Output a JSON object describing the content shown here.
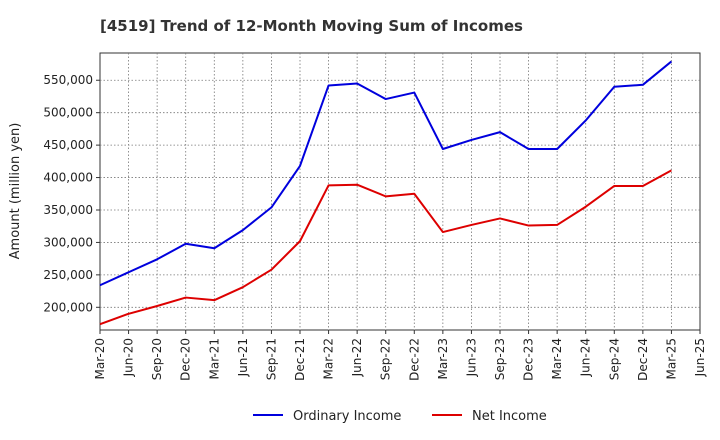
{
  "chart_data": {
    "type": "line",
    "title": "[4519]  Trend of 12-Month Moving Sum of Incomes",
    "xlabel": "",
    "ylabel": "Amount (million yen)",
    "ylim": [
      165000,
      592000
    ],
    "yticks": [
      200000,
      250000,
      300000,
      350000,
      400000,
      450000,
      500000,
      550000
    ],
    "ytick_labels": [
      "200,000",
      "250,000",
      "300,000",
      "350,000",
      "400,000",
      "450,000",
      "500,000",
      "550,000"
    ],
    "x_tick_labels": [
      "Mar-20",
      "Jun-20",
      "Sep-20",
      "Dec-20",
      "Mar-21",
      "Jun-21",
      "Sep-21",
      "Dec-21",
      "Mar-22",
      "Jun-22",
      "Sep-22",
      "Dec-22",
      "Mar-23",
      "Jun-23",
      "Sep-23",
      "Dec-23",
      "Mar-24",
      "Jun-24",
      "Sep-24",
      "Dec-24",
      "Mar-25",
      "Jun-25"
    ],
    "x": [
      "Mar-20",
      "Jun-20",
      "Sep-20",
      "Dec-20",
      "Mar-21",
      "Jun-21",
      "Sep-21",
      "Dec-21",
      "Mar-22",
      "Jun-22",
      "Sep-22",
      "Dec-22",
      "Mar-23",
      "Jun-23",
      "Sep-23",
      "Dec-23",
      "Mar-24",
      "Jun-24",
      "Sep-24",
      "Dec-24",
      "Mar-25"
    ],
    "grid": true,
    "legend_position": "bottom",
    "series": [
      {
        "name": "Ordinary Income",
        "color": "#0000dd",
        "values": [
          234000,
          254000,
          274000,
          298000,
          291000,
          319000,
          354000,
          418000,
          542000,
          545000,
          521000,
          531000,
          444000,
          458000,
          470000,
          444000,
          444000,
          488000,
          540000,
          543000,
          579000
        ]
      },
      {
        "name": "Net Income",
        "color": "#dd0000",
        "values": [
          174000,
          190000,
          202000,
          215000,
          211000,
          231000,
          258000,
          302000,
          388000,
          389000,
          371000,
          375000,
          316000,
          327000,
          337000,
          326000,
          327000,
          355000,
          387000,
          387000,
          411000
        ]
      }
    ]
  }
}
